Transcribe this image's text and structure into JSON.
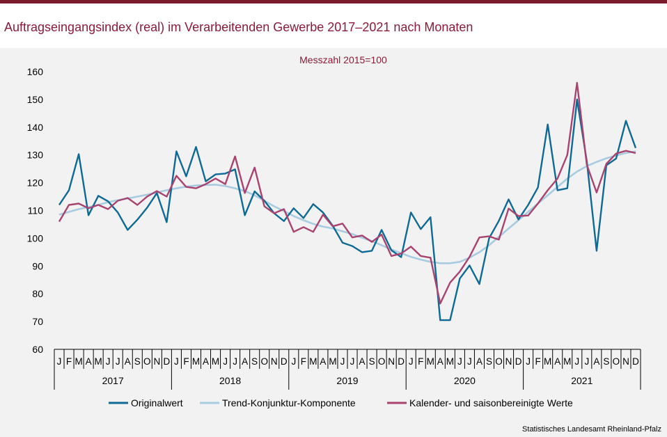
{
  "title": "Auftragseingangsindex (real) im Verarbeitenden Gewerbe 2017–2021 nach Monaten",
  "source": "Statistisches Landesamt Rheinland-Pfalz",
  "chart_data": {
    "type": "line",
    "subtitle": "Messzahl 2015=100",
    "ylim": [
      60,
      160
    ],
    "yticks": [
      60,
      70,
      80,
      90,
      100,
      110,
      120,
      130,
      140,
      150,
      160
    ],
    "month_labels": [
      "J",
      "F",
      "M",
      "A",
      "M",
      "J",
      "J",
      "A",
      "S",
      "O",
      "N",
      "D"
    ],
    "years": [
      "2017",
      "2018",
      "2019",
      "2020",
      "2021"
    ],
    "series": [
      {
        "name": "Originalwert",
        "color": "#0e6a94",
        "values": [
          112,
          117.3,
          130.3,
          108.3,
          115.3,
          113.3,
          109.3,
          103,
          106.7,
          111,
          116.3,
          105.8,
          131.3,
          122.3,
          132.9,
          120.5,
          123,
          123.3,
          124.8,
          108.3,
          116.9,
          113.5,
          109,
          106.2,
          110.8,
          107.3,
          112.3,
          109.3,
          104.5,
          98.4,
          97.2,
          95,
          95.5,
          103,
          95.7,
          93.2,
          109.3,
          103.3,
          107.6,
          70.5,
          70.5,
          85.5,
          90.2,
          83.5,
          100,
          106.3,
          114,
          106.8,
          112,
          118.3,
          141,
          117.3,
          118,
          150,
          127.8,
          95.5,
          126.3,
          128.7,
          142.3,
          132.5
        ]
      },
      {
        "name": "Trend-Konjunktur-Komponente",
        "color": "#a7cbe0",
        "values": [
          108.5,
          109.5,
          110.5,
          111.2,
          112,
          113,
          113.7,
          114.3,
          115,
          115.7,
          116.5,
          117.3,
          118,
          118.6,
          119,
          119.2,
          119.3,
          118.8,
          118,
          117,
          115.5,
          113.5,
          111.5,
          109.8,
          108,
          106.5,
          105.2,
          104.2,
          103.5,
          102.5,
          101.5,
          100.2,
          99,
          97.5,
          96,
          94.6,
          93.3,
          92.3,
          91.5,
          91,
          91,
          91.5,
          93,
          95,
          97.5,
          100.5,
          103.5,
          106.5,
          109.5,
          112.5,
          115.5,
          118.5,
          121.5,
          124,
          126,
          127.5,
          128.8,
          129.8,
          130.7,
          131.3
        ]
      },
      {
        "name": "Kalender- und saisonbereinigte Werte",
        "color": "#a8436f",
        "values": [
          106,
          112,
          112.5,
          110.8,
          112,
          110.5,
          113.5,
          114.5,
          112,
          115,
          117,
          115,
          122.5,
          118.5,
          118,
          119.5,
          121.5,
          119.5,
          129.5,
          116.3,
          125.5,
          111.5,
          109,
          110.5,
          102.3,
          104,
          102.3,
          108.5,
          104.3,
          105.3,
          100.3,
          101,
          98.7,
          101.3,
          93.6,
          94.5,
          97,
          93.6,
          93,
          76.5,
          84,
          88,
          93.3,
          100.3,
          100.7,
          99.5,
          110.7,
          108,
          108.2,
          112.5,
          117.3,
          121.5,
          130,
          156,
          126.5,
          116.5,
          126.8,
          130.5,
          131.5,
          130.7
        ]
      }
    ],
    "legend_position": "bottom"
  }
}
